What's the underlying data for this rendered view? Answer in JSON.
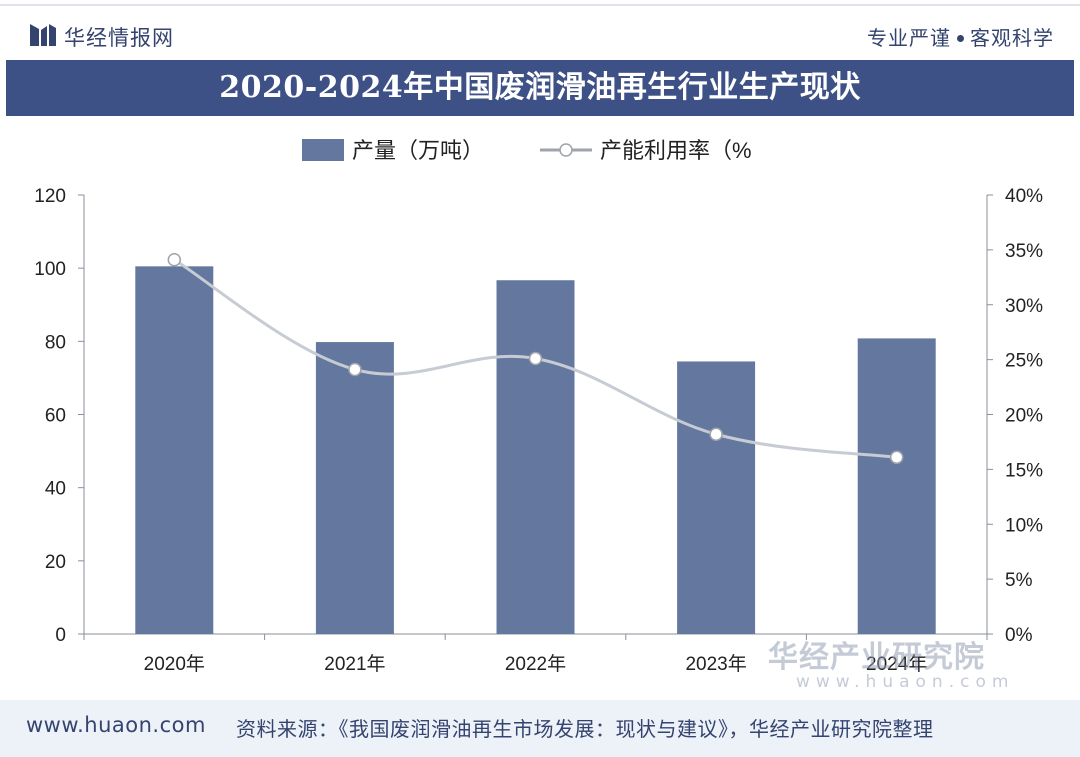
{
  "header": {
    "brand": "华经情报网",
    "slogan_left": "专业严谨",
    "slogan_right": "客观科学"
  },
  "footer": {
    "url": "www.huaon.com",
    "source": "资料来源：《我国废润滑油再生市场发展：现状与建议》，华经产业研究院整理"
  },
  "watermark": {
    "text": "华经产业研究院",
    "url": "www.huaon.com"
  },
  "colors": {
    "bar": "#64779f",
    "line": "#c7cbd3",
    "title_band": "#3e5187",
    "text": "#34446f"
  },
  "chart_data": {
    "type": "bar",
    "title": "2020-2024年中国废润滑油再生行业生产现状",
    "categories": [
      "2020年",
      "2021年",
      "2022年",
      "2023年",
      "2024年"
    ],
    "series": [
      {
        "name": "产量（万吨）",
        "type": "bar",
        "axis": "left",
        "values": [
          100.5,
          79.8,
          96.7,
          74.5,
          80.8
        ]
      },
      {
        "name": "产能利用率（%",
        "type": "line",
        "axis": "right",
        "values": [
          34.1,
          24.1,
          25.1,
          18.2,
          16.1
        ]
      }
    ],
    "y_left": {
      "min": 0,
      "max": 120,
      "ticks": [
        "0",
        "20",
        "40",
        "60",
        "80",
        "100",
        "120"
      ]
    },
    "y_right": {
      "min": 0,
      "max": 40,
      "ticks": [
        "0%",
        "5%",
        "10%",
        "15%",
        "20%",
        "25%",
        "30%",
        "35%",
        "40%"
      ]
    },
    "grid": false,
    "legend_position": "top-center"
  }
}
